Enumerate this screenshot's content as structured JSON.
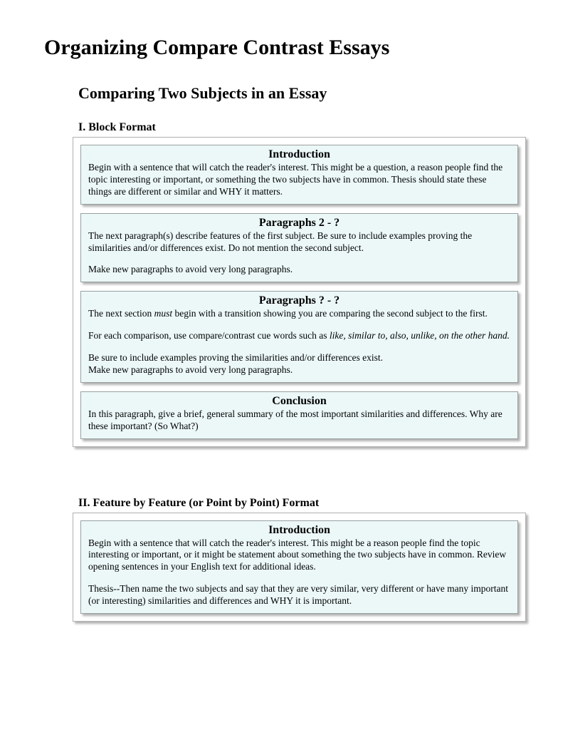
{
  "title": "Organizing Compare Contrast Essays",
  "subtitle": "Comparing Two Subjects in an Essay",
  "section1": {
    "header": "I. Block Format",
    "boxes": [
      {
        "heading": "Introduction",
        "paras": [
          "Begin with a sentence that will catch the reader's interest. This might be a question, a reason people find the topic interesting or important, or something the two subjects have in common. Thesis should state these things are different or similar and WHY it matters."
        ]
      },
      {
        "heading": "Paragraphs 2 - ?",
        "paras": [
          "The next paragraph(s) describe features of the first subject. Be sure to include examples proving the similarities and/or differences exist. Do not mention the second subject.",
          "Make new paragraphs to avoid very long paragraphs."
        ]
      },
      {
        "heading": "Paragraphs ? - ?",
        "paras_html": [
          "The next section <em>must</em> begin with a transition showing you are comparing the second subject to the first.",
          "For each comparison, use compare/contrast cue words such as <em>like, similar to, also, unlike, on the other hand.</em>",
          "Be sure to include examples proving the similarities and/or differences exist.<br>Make new paragraphs to avoid very long paragraphs."
        ]
      },
      {
        "heading": "Conclusion",
        "paras": [
          "In this paragraph, give a brief, general summary of the most important similarities and differences. Why are these important? (So What?)"
        ]
      }
    ]
  },
  "section2": {
    "header": "II. Feature by Feature (or Point by Point) Format",
    "boxes": [
      {
        "heading": "Introduction",
        "paras": [
          "Begin with a sentence that will catch the reader's interest. This might be a reason people find the topic interesting or important, or it might be statement about something the two subjects have in common. Review opening sentences in your English text for additional ideas.",
          "Thesis--Then name the two subjects and say that they are very similar, very different or have many important (or interesting) similarities and differences and WHY it is important."
        ]
      }
    ]
  },
  "colors": {
    "box_bg": "#ecf8f8",
    "box_border": "#9aa0a0",
    "frame_border": "#b0b0b0",
    "shadow": "rgba(0,0,0,0.3)",
    "text": "#000000",
    "page_bg": "#ffffff"
  }
}
